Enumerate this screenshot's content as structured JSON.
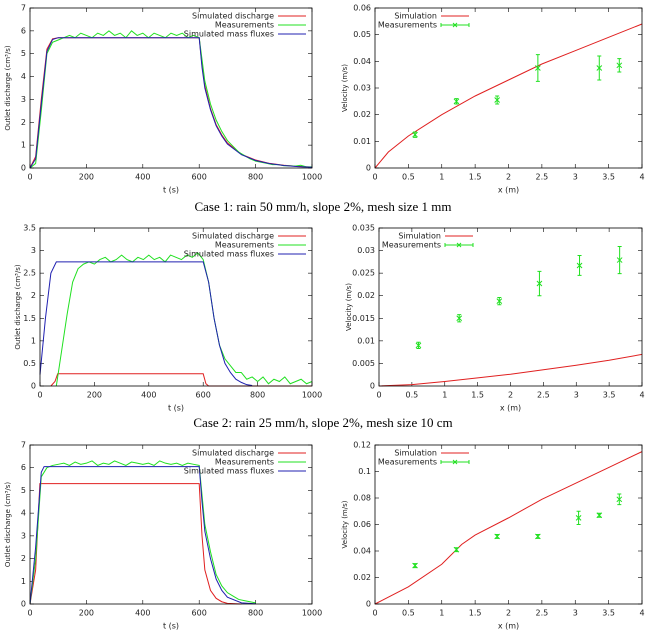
{
  "chart_data": [
    {
      "type": "line",
      "xlabel": "t (s)",
      "ylabel": "Outlet discharge (cm³/s)",
      "xlim": [
        0,
        1000
      ],
      "ylim": [
        0,
        7
      ],
      "xticks": [
        0,
        200,
        400,
        600,
        800,
        1000
      ],
      "yticks": [
        0,
        1,
        2,
        3,
        4,
        5,
        6,
        7
      ],
      "legend": "top-right",
      "series": [
        {
          "name": "Simulated discharge",
          "color": "#e02020",
          "mark": "line",
          "x": [
            0,
            20,
            40,
            60,
            80,
            100,
            600,
            610,
            620,
            640,
            660,
            680,
            700,
            750,
            800,
            850,
            900,
            950,
            1000
          ],
          "values": [
            0,
            0.5,
            3.0,
            5.2,
            5.65,
            5.7,
            5.7,
            4.5,
            3.6,
            2.6,
            1.9,
            1.45,
            1.1,
            0.6,
            0.35,
            0.2,
            0.12,
            0.07,
            0.04
          ]
        },
        {
          "name": "Measurements",
          "color": "#20e020",
          "mark": "line",
          "x": [
            0,
            20,
            40,
            60,
            80,
            100,
            120,
            140,
            160,
            180,
            200,
            220,
            240,
            260,
            280,
            300,
            320,
            340,
            360,
            380,
            400,
            420,
            440,
            460,
            480,
            500,
            520,
            540,
            560,
            580,
            600,
            620,
            640,
            660,
            680,
            700,
            720,
            740,
            760,
            780,
            800,
            820,
            840,
            860,
            880,
            900,
            920,
            940,
            960,
            980,
            1000
          ],
          "values": [
            0,
            0.2,
            2.5,
            5.0,
            5.5,
            5.6,
            5.7,
            5.8,
            5.7,
            5.9,
            5.8,
            5.7,
            5.9,
            5.8,
            6.0,
            5.8,
            5.9,
            5.7,
            6.0,
            5.8,
            5.9,
            5.7,
            5.9,
            5.8,
            5.7,
            5.9,
            5.8,
            5.9,
            5.7,
            5.8,
            5.7,
            3.8,
            2.8,
            2.1,
            1.6,
            1.2,
            0.95,
            0.7,
            0.55,
            0.4,
            0.3,
            0.25,
            0.2,
            0.15,
            0.15,
            0.1,
            0.1,
            0.08,
            0.12,
            0.05,
            0.05
          ]
        },
        {
          "name": "Simulated mass fluxes",
          "color": "#2020b0",
          "mark": "line",
          "x": [
            0,
            20,
            40,
            60,
            80,
            100,
            600,
            610,
            620,
            640,
            660,
            680,
            700,
            750,
            800,
            850,
            900,
            950,
            1000
          ],
          "values": [
            0,
            0.4,
            2.8,
            5.1,
            5.62,
            5.7,
            5.7,
            4.4,
            3.5,
            2.55,
            1.85,
            1.4,
            1.05,
            0.58,
            0.33,
            0.19,
            0.11,
            0.06,
            0.03
          ]
        }
      ]
    },
    {
      "type": "line",
      "xlabel": "x (m)",
      "ylabel": "Velocity (m/s)",
      "xlim": [
        0,
        4
      ],
      "ylim": [
        0,
        0.06
      ],
      "xticks": [
        0,
        0.5,
        1,
        1.5,
        2,
        2.5,
        3,
        3.5,
        4
      ],
      "yticks": [
        0,
        0.01,
        0.02,
        0.03,
        0.04,
        0.05,
        0.06
      ],
      "legend": "top-left",
      "series": [
        {
          "name": "Simulation",
          "color": "#e02020",
          "mark": "line",
          "x": [
            0,
            0.2,
            0.5,
            1,
            1.5,
            2,
            2.5,
            3,
            3.5,
            4
          ],
          "values": [
            0,
            0.006,
            0.012,
            0.02,
            0.027,
            0.033,
            0.039,
            0.044,
            0.049,
            0.054
          ]
        },
        {
          "name": "Measurements",
          "color": "#20e020",
          "mark": "errorbar",
          "x": [
            0.6,
            1.22,
            1.83,
            2.44,
            3.36,
            3.66
          ],
          "values": [
            0.0125,
            0.025,
            0.0255,
            0.0375,
            0.0375,
            0.0385
          ],
          "errors": [
            0.001,
            0.001,
            0.0015,
            0.005,
            0.0045,
            0.0025
          ]
        }
      ]
    },
    {
      "type": "line",
      "xlabel": "t (s)",
      "ylabel": "Outlet discharge (cm³/s)",
      "xlim": [
        0,
        1000
      ],
      "ylim": [
        0,
        3.5
      ],
      "xticks": [
        0,
        200,
        400,
        600,
        800,
        1000
      ],
      "yticks": [
        0,
        0.5,
        1,
        1.5,
        2,
        2.5,
        3,
        3.5
      ],
      "legend": "top-right",
      "series": [
        {
          "name": "Simulated discharge",
          "color": "#e02020",
          "mark": "line",
          "x": [
            40,
            55,
            65,
            600,
            610,
            620,
            1000
          ],
          "values": [
            0,
            0.1,
            0.27,
            0.27,
            0.05,
            0,
            0
          ]
        },
        {
          "name": "Measurements",
          "color": "#20e020",
          "mark": "line",
          "x": [
            60,
            80,
            100,
            120,
            140,
            160,
            180,
            200,
            220,
            240,
            260,
            280,
            300,
            320,
            340,
            360,
            380,
            400,
            420,
            440,
            460,
            480,
            500,
            520,
            540,
            560,
            580,
            600,
            620,
            640,
            660,
            680,
            700,
            720,
            740,
            760,
            780,
            800,
            820,
            840,
            860,
            880,
            900,
            920,
            940,
            960,
            980,
            1000
          ],
          "values": [
            0,
            0.8,
            1.6,
            2.3,
            2.6,
            2.7,
            2.75,
            2.7,
            2.8,
            2.85,
            2.75,
            2.8,
            2.9,
            2.8,
            2.75,
            2.85,
            2.8,
            2.9,
            2.8,
            2.85,
            2.75,
            2.9,
            2.85,
            2.8,
            2.9,
            2.85,
            2.95,
            2.8,
            2.3,
            1.5,
            0.9,
            0.6,
            0.45,
            0.3,
            0.3,
            0.15,
            0.2,
            0.1,
            0.2,
            0.05,
            0.15,
            0.1,
            0.2,
            0.05,
            0.1,
            0.15,
            0.05,
            0.1
          ]
        },
        {
          "name": "Simulated mass fluxes",
          "color": "#2020b0",
          "mark": "line",
          "x": [
            0,
            20,
            40,
            60,
            600,
            620,
            640,
            660,
            680,
            700,
            720,
            740,
            760,
            780
          ],
          "values": [
            0.25,
            1.5,
            2.5,
            2.75,
            2.75,
            2.3,
            1.5,
            0.9,
            0.5,
            0.3,
            0.15,
            0.08,
            0.03,
            0.01
          ]
        }
      ]
    },
    {
      "type": "line",
      "xlabel": "x (m)",
      "ylabel": "Velocity (m/s)",
      "xlim": [
        0,
        4
      ],
      "ylim": [
        0,
        0.035
      ],
      "xticks": [
        0,
        0.5,
        1,
        1.5,
        2,
        2.5,
        3,
        3.5,
        4
      ],
      "yticks": [
        0,
        0.005,
        0.01,
        0.015,
        0.02,
        0.025,
        0.03,
        0.035
      ],
      "legend": "top-left",
      "series": [
        {
          "name": "Simulation",
          "color": "#e02020",
          "mark": "line",
          "x": [
            0,
            0.5,
            1,
            1.5,
            2,
            2.5,
            3,
            3.5,
            4
          ],
          "values": [
            0,
            0.0003,
            0.001,
            0.0018,
            0.0026,
            0.0036,
            0.0046,
            0.0057,
            0.007
          ]
        },
        {
          "name": "Measurements",
          "color": "#20e020",
          "mark": "errorbar",
          "x": [
            0.6,
            1.22,
            1.83,
            2.44,
            3.05,
            3.66
          ],
          "values": [
            0.009,
            0.015,
            0.0188,
            0.0227,
            0.0267,
            0.0279
          ],
          "errors": [
            0.0007,
            0.0008,
            0.0008,
            0.0027,
            0.0022,
            0.003
          ]
        }
      ]
    },
    {
      "type": "line",
      "xlabel": "t (s)",
      "ylabel": "Outlet discharge (cm³/s)",
      "xlim": [
        0,
        1000
      ],
      "ylim": [
        0,
        7
      ],
      "xticks": [
        0,
        200,
        400,
        600,
        800,
        1000
      ],
      "yticks": [
        0,
        1,
        2,
        3,
        4,
        5,
        6,
        7
      ],
      "legend": "top-right",
      "series": [
        {
          "name": "Simulated discharge",
          "color": "#e02020",
          "mark": "line",
          "x": [
            0,
            20,
            35,
            600,
            610,
            620,
            640,
            660,
            680,
            700,
            750
          ],
          "values": [
            0,
            1.5,
            5.3,
            5.3,
            3.0,
            1.5,
            0.6,
            0.25,
            0.1,
            0.03,
            0
          ]
        },
        {
          "name": "Measurements",
          "color": "#20e020",
          "mark": "line",
          "x": [
            0,
            20,
            40,
            60,
            80,
            100,
            120,
            140,
            160,
            180,
            200,
            220,
            240,
            260,
            280,
            300,
            320,
            340,
            360,
            380,
            400,
            420,
            440,
            460,
            480,
            500,
            520,
            540,
            560,
            580,
            600,
            620,
            640,
            660,
            680,
            700,
            720,
            740,
            760,
            780,
            800
          ],
          "values": [
            0,
            2,
            5.6,
            6.0,
            6.1,
            6.15,
            6.2,
            6.1,
            6.25,
            6.15,
            6.2,
            6.3,
            6.1,
            6.2,
            6.15,
            6.3,
            6.2,
            6.1,
            6.25,
            6.2,
            6.15,
            6.2,
            6.1,
            6.3,
            6.2,
            6.15,
            6.2,
            6.1,
            6.2,
            6.15,
            6.1,
            3.5,
            2.3,
            1.3,
            0.8,
            0.5,
            0.35,
            0.2,
            0.15,
            0.1,
            0.05
          ]
        },
        {
          "name": "Simulated mass fluxes",
          "color": "#2020b0",
          "mark": "line",
          "x": [
            0,
            20,
            40,
            50,
            600,
            610,
            620,
            640,
            660,
            680,
            700,
            750,
            800
          ],
          "values": [
            0,
            2.5,
            5.8,
            6.05,
            6.05,
            4.5,
            3.2,
            2.0,
            1.1,
            0.6,
            0.3,
            0.05,
            0.01
          ]
        }
      ]
    },
    {
      "type": "line",
      "xlabel": "x (m)",
      "ylabel": "Velocity (m/s)",
      "xlim": [
        0,
        4
      ],
      "ylim": [
        0,
        0.12
      ],
      "xticks": [
        0,
        0.5,
        1,
        1.5,
        2,
        2.5,
        3,
        3.5,
        4
      ],
      "yticks": [
        0,
        0.02,
        0.04,
        0.06,
        0.08,
        0.1,
        0.12
      ],
      "legend": "top-left",
      "series": [
        {
          "name": "Simulation",
          "color": "#e02020",
          "mark": "line",
          "x": [
            0,
            0.5,
            1,
            1.3,
            1.5,
            2,
            2.5,
            3,
            3.5,
            4
          ],
          "values": [
            0,
            0.013,
            0.03,
            0.045,
            0.052,
            0.065,
            0.079,
            0.091,
            0.103,
            0.115
          ]
        },
        {
          "name": "Measurements",
          "color": "#20e020",
          "mark": "errorbar",
          "x": [
            0.6,
            1.22,
            1.83,
            2.44,
            3.05,
            3.36,
            3.66
          ],
          "values": [
            0.029,
            0.041,
            0.051,
            0.051,
            0.065,
            0.067,
            0.079
          ],
          "errors": [
            0.0015,
            0.0015,
            0.0015,
            0.0015,
            0.005,
            0.0015,
            0.004
          ]
        }
      ]
    }
  ],
  "captions": [
    "Case 1: rain 50 mm/h, slope 2%, mesh size 1 mm",
    "Case 2: rain 25 mm/h, slope 2%, mesh size 10 cm"
  ]
}
